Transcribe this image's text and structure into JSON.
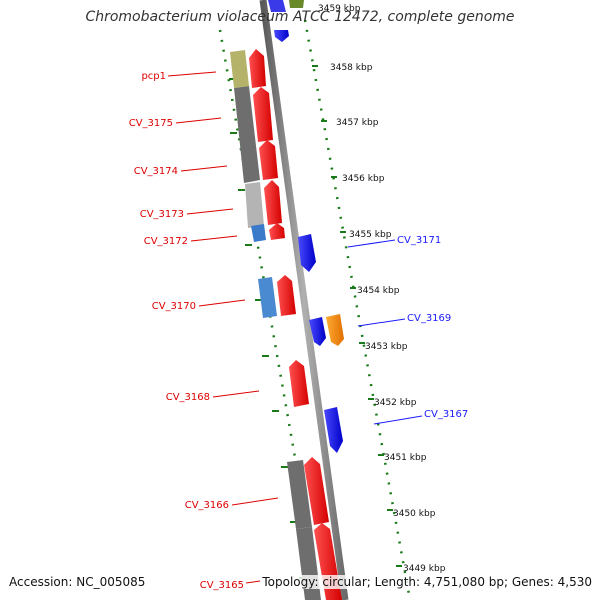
{
  "title": "Chromobacterium violaceum ATCC 12472, complete genome",
  "accession": "Accession: NC_005085",
  "summary": "Topology: circular; Length: 4,751,080 bp; Genes: 4,530",
  "colors": {
    "backbone": "#8c8c8c",
    "ticks": "#1a7a1a",
    "red_gene": "#ff1a1a",
    "blue_gene": "#1a1aff",
    "orange_gene": "#ff8c00",
    "left_label": "#dd0000",
    "right_label": "#1a1aff"
  },
  "kbp_ticks": [
    "3459 kbp",
    "3458 kbp",
    "3457 kbp",
    "3456 kbp",
    "3455 kbp",
    "3454 kbp",
    "3453 kbp",
    "3452 kbp",
    "3451 kbp",
    "3450 kbp",
    "3449 kbp"
  ],
  "left_genes": [
    "pcp1",
    "CV_3175",
    "CV_3174",
    "CV_3173",
    "CV_3172",
    "CV_3170",
    "CV_3168",
    "CV_3166",
    "CV_3165"
  ],
  "right_genes": [
    "CV_3171",
    "CV_3169",
    "CV_3167"
  ]
}
